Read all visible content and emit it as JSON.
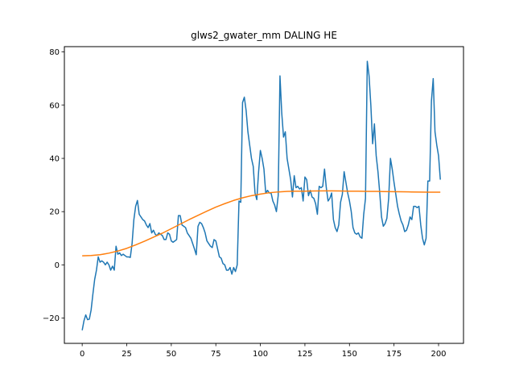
{
  "chart_data": {
    "type": "line",
    "title": "glws2_gwater_mm DALING HE",
    "xlabel": "",
    "ylabel": "",
    "xlim": [
      -10,
      214
    ],
    "ylim": [
      -29.5,
      82
    ],
    "xticks": [
      0,
      25,
      50,
      75,
      100,
      125,
      150,
      175,
      200
    ],
    "yticks": [
      -20,
      0,
      20,
      40,
      60,
      80
    ],
    "xtick_labels": [
      "0",
      "25",
      "50",
      "75",
      "100",
      "125",
      "150",
      "175",
      "200"
    ],
    "ytick_labels": [
      "−20",
      "0",
      "20",
      "40",
      "60",
      "80"
    ],
    "grid": false,
    "legend": "none",
    "series": [
      {
        "color": "#1f77b4",
        "points": [
          [
            0,
            -24.6
          ],
          [
            1,
            -21
          ],
          [
            2,
            -18.8
          ],
          [
            3,
            -20.6
          ],
          [
            4,
            -20.4
          ],
          [
            5,
            -17
          ],
          [
            6,
            -11
          ],
          [
            7,
            -5.5
          ],
          [
            8,
            -2
          ],
          [
            9,
            3
          ],
          [
            10,
            1
          ],
          [
            11,
            1.5
          ],
          [
            12,
            1
          ],
          [
            13,
            0
          ],
          [
            14,
            1
          ],
          [
            15,
            0
          ],
          [
            16,
            -2
          ],
          [
            17,
            -0.5
          ],
          [
            18,
            -2
          ],
          [
            19,
            7
          ],
          [
            20,
            4
          ],
          [
            21,
            4.5
          ],
          [
            22,
            3.5
          ],
          [
            23,
            4
          ],
          [
            24,
            3.5
          ],
          [
            25,
            3
          ],
          [
            26,
            3
          ],
          [
            27,
            2.8
          ],
          [
            28,
            8
          ],
          [
            29,
            17
          ],
          [
            30,
            22
          ],
          [
            31,
            24.2
          ],
          [
            32,
            19
          ],
          [
            33,
            18
          ],
          [
            34,
            17
          ],
          [
            35,
            16.5
          ],
          [
            36,
            15
          ],
          [
            37,
            14
          ],
          [
            38,
            15.5
          ],
          [
            39,
            12
          ],
          [
            40,
            13
          ],
          [
            41,
            11.5
          ],
          [
            42,
            11
          ],
          [
            43,
            12
          ],
          [
            44,
            11.5
          ],
          [
            45,
            11
          ],
          [
            46,
            9.5
          ],
          [
            47,
            9.5
          ],
          [
            48,
            12
          ],
          [
            49,
            11.5
          ],
          [
            50,
            9
          ],
          [
            51,
            8.5
          ],
          [
            52,
            9
          ],
          [
            53,
            9.5
          ],
          [
            54,
            18.5
          ],
          [
            55,
            18.5
          ],
          [
            56,
            15
          ],
          [
            57,
            14.5
          ],
          [
            58,
            14
          ],
          [
            59,
            12
          ],
          [
            60,
            11
          ],
          [
            61,
            10
          ],
          [
            62,
            8
          ],
          [
            63,
            6
          ],
          [
            64,
            3.8
          ],
          [
            65,
            14.5
          ],
          [
            66,
            16
          ],
          [
            67,
            15.5
          ],
          [
            68,
            14
          ],
          [
            69,
            12
          ],
          [
            70,
            9
          ],
          [
            71,
            8
          ],
          [
            72,
            7
          ],
          [
            73,
            6.5
          ],
          [
            74,
            9.5
          ],
          [
            75,
            9
          ],
          [
            76,
            6
          ],
          [
            77,
            3
          ],
          [
            78,
            2.5
          ],
          [
            79,
            0.5
          ],
          [
            80,
            0
          ],
          [
            81,
            -2
          ],
          [
            82,
            -2
          ],
          [
            83,
            -1
          ],
          [
            84,
            -3.5
          ],
          [
            85,
            -1
          ],
          [
            86,
            -2.5
          ],
          [
            87,
            0
          ],
          [
            88,
            24
          ],
          [
            89,
            23.5
          ],
          [
            90,
            61
          ],
          [
            91,
            63
          ],
          [
            92,
            58
          ],
          [
            93,
            50
          ],
          [
            94,
            45
          ],
          [
            95,
            40
          ],
          [
            96,
            37
          ],
          [
            97,
            27
          ],
          [
            98,
            24.5
          ],
          [
            99,
            35
          ],
          [
            100,
            43
          ],
          [
            101,
            40
          ],
          [
            102,
            36
          ],
          [
            103,
            27
          ],
          [
            104,
            28
          ],
          [
            105,
            27
          ],
          [
            106,
            27
          ],
          [
            107,
            24
          ],
          [
            108,
            22.5
          ],
          [
            109,
            20
          ],
          [
            110,
            26
          ],
          [
            111,
            71
          ],
          [
            112,
            57
          ],
          [
            113,
            48
          ],
          [
            114,
            50
          ],
          [
            115,
            40
          ],
          [
            116,
            36
          ],
          [
            117,
            32
          ],
          [
            118,
            25.5
          ],
          [
            119,
            33.5
          ],
          [
            120,
            29
          ],
          [
            121,
            29.5
          ],
          [
            122,
            28.5
          ],
          [
            123,
            29
          ],
          [
            124,
            24
          ],
          [
            125,
            33
          ],
          [
            126,
            32
          ],
          [
            127,
            26
          ],
          [
            128,
            28
          ],
          [
            129,
            25.5
          ],
          [
            130,
            25
          ],
          [
            131,
            23
          ],
          [
            132,
            19
          ],
          [
            133,
            29.5
          ],
          [
            134,
            29
          ],
          [
            135,
            29.5
          ],
          [
            136,
            36
          ],
          [
            137,
            29
          ],
          [
            138,
            24
          ],
          [
            139,
            25
          ],
          [
            140,
            27
          ],
          [
            141,
            17
          ],
          [
            142,
            14
          ],
          [
            143,
            12.5
          ],
          [
            144,
            15
          ],
          [
            145,
            23.5
          ],
          [
            146,
            26.5
          ],
          [
            147,
            35
          ],
          [
            148,
            31
          ],
          [
            149,
            27
          ],
          [
            150,
            24
          ],
          [
            151,
            20
          ],
          [
            152,
            14
          ],
          [
            153,
            12
          ],
          [
            154,
            11.5
          ],
          [
            155,
            12
          ],
          [
            156,
            10.5
          ],
          [
            157,
            10
          ],
          [
            158,
            19
          ],
          [
            159,
            25
          ],
          [
            160,
            76.5
          ],
          [
            161,
            71
          ],
          [
            162,
            60
          ],
          [
            163,
            45.5
          ],
          [
            164,
            53
          ],
          [
            165,
            41
          ],
          [
            166,
            35
          ],
          [
            167,
            27
          ],
          [
            168,
            18
          ],
          [
            169,
            14.5
          ],
          [
            170,
            15.5
          ],
          [
            171,
            17.5
          ],
          [
            172,
            25
          ],
          [
            173,
            40
          ],
          [
            174,
            36
          ],
          [
            175,
            31
          ],
          [
            176,
            26.5
          ],
          [
            177,
            22
          ],
          [
            178,
            19
          ],
          [
            179,
            16.5
          ],
          [
            180,
            15
          ],
          [
            181,
            12.5
          ],
          [
            182,
            13
          ],
          [
            183,
            15
          ],
          [
            184,
            18
          ],
          [
            185,
            17
          ],
          [
            186,
            22
          ],
          [
            187,
            22
          ],
          [
            188,
            21.5
          ],
          [
            189,
            22
          ],
          [
            190,
            15
          ],
          [
            191,
            10
          ],
          [
            192,
            7.5
          ],
          [
            193,
            10
          ],
          [
            194,
            31.5
          ],
          [
            195,
            31.5
          ],
          [
            196,
            61.5
          ],
          [
            197,
            70
          ],
          [
            198,
            50
          ],
          [
            199,
            45
          ],
          [
            200,
            41
          ],
          [
            201,
            32
          ]
        ]
      },
      {
        "color": "#ff7f0e",
        "points": [
          [
            0,
            3.4
          ],
          [
            5,
            3.5
          ],
          [
            10,
            3.8
          ],
          [
            15,
            4.4
          ],
          [
            20,
            5.2
          ],
          [
            25,
            6.2
          ],
          [
            30,
            7.5
          ],
          [
            35,
            8.9
          ],
          [
            40,
            10.4
          ],
          [
            45,
            11.9
          ],
          [
            50,
            13.6
          ],
          [
            55,
            15.3
          ],
          [
            60,
            17
          ],
          [
            65,
            18.6
          ],
          [
            70,
            20.2
          ],
          [
            75,
            21.7
          ],
          [
            80,
            23
          ],
          [
            85,
            24.2
          ],
          [
            90,
            25.2
          ],
          [
            95,
            26
          ],
          [
            100,
            26.6
          ],
          [
            105,
            27.1
          ],
          [
            110,
            27.4
          ],
          [
            115,
            27.6
          ],
          [
            120,
            27.7
          ],
          [
            125,
            27.7
          ],
          [
            130,
            27.75
          ],
          [
            135,
            27.8
          ],
          [
            140,
            27.8
          ],
          [
            145,
            27.75
          ],
          [
            150,
            27.7
          ],
          [
            155,
            27.7
          ],
          [
            160,
            27.6
          ],
          [
            165,
            27.6
          ],
          [
            170,
            27.55
          ],
          [
            175,
            27.5
          ],
          [
            180,
            27.45
          ],
          [
            185,
            27.4
          ],
          [
            190,
            27.35
          ],
          [
            195,
            27.3
          ],
          [
            201,
            27.3
          ]
        ]
      }
    ]
  }
}
